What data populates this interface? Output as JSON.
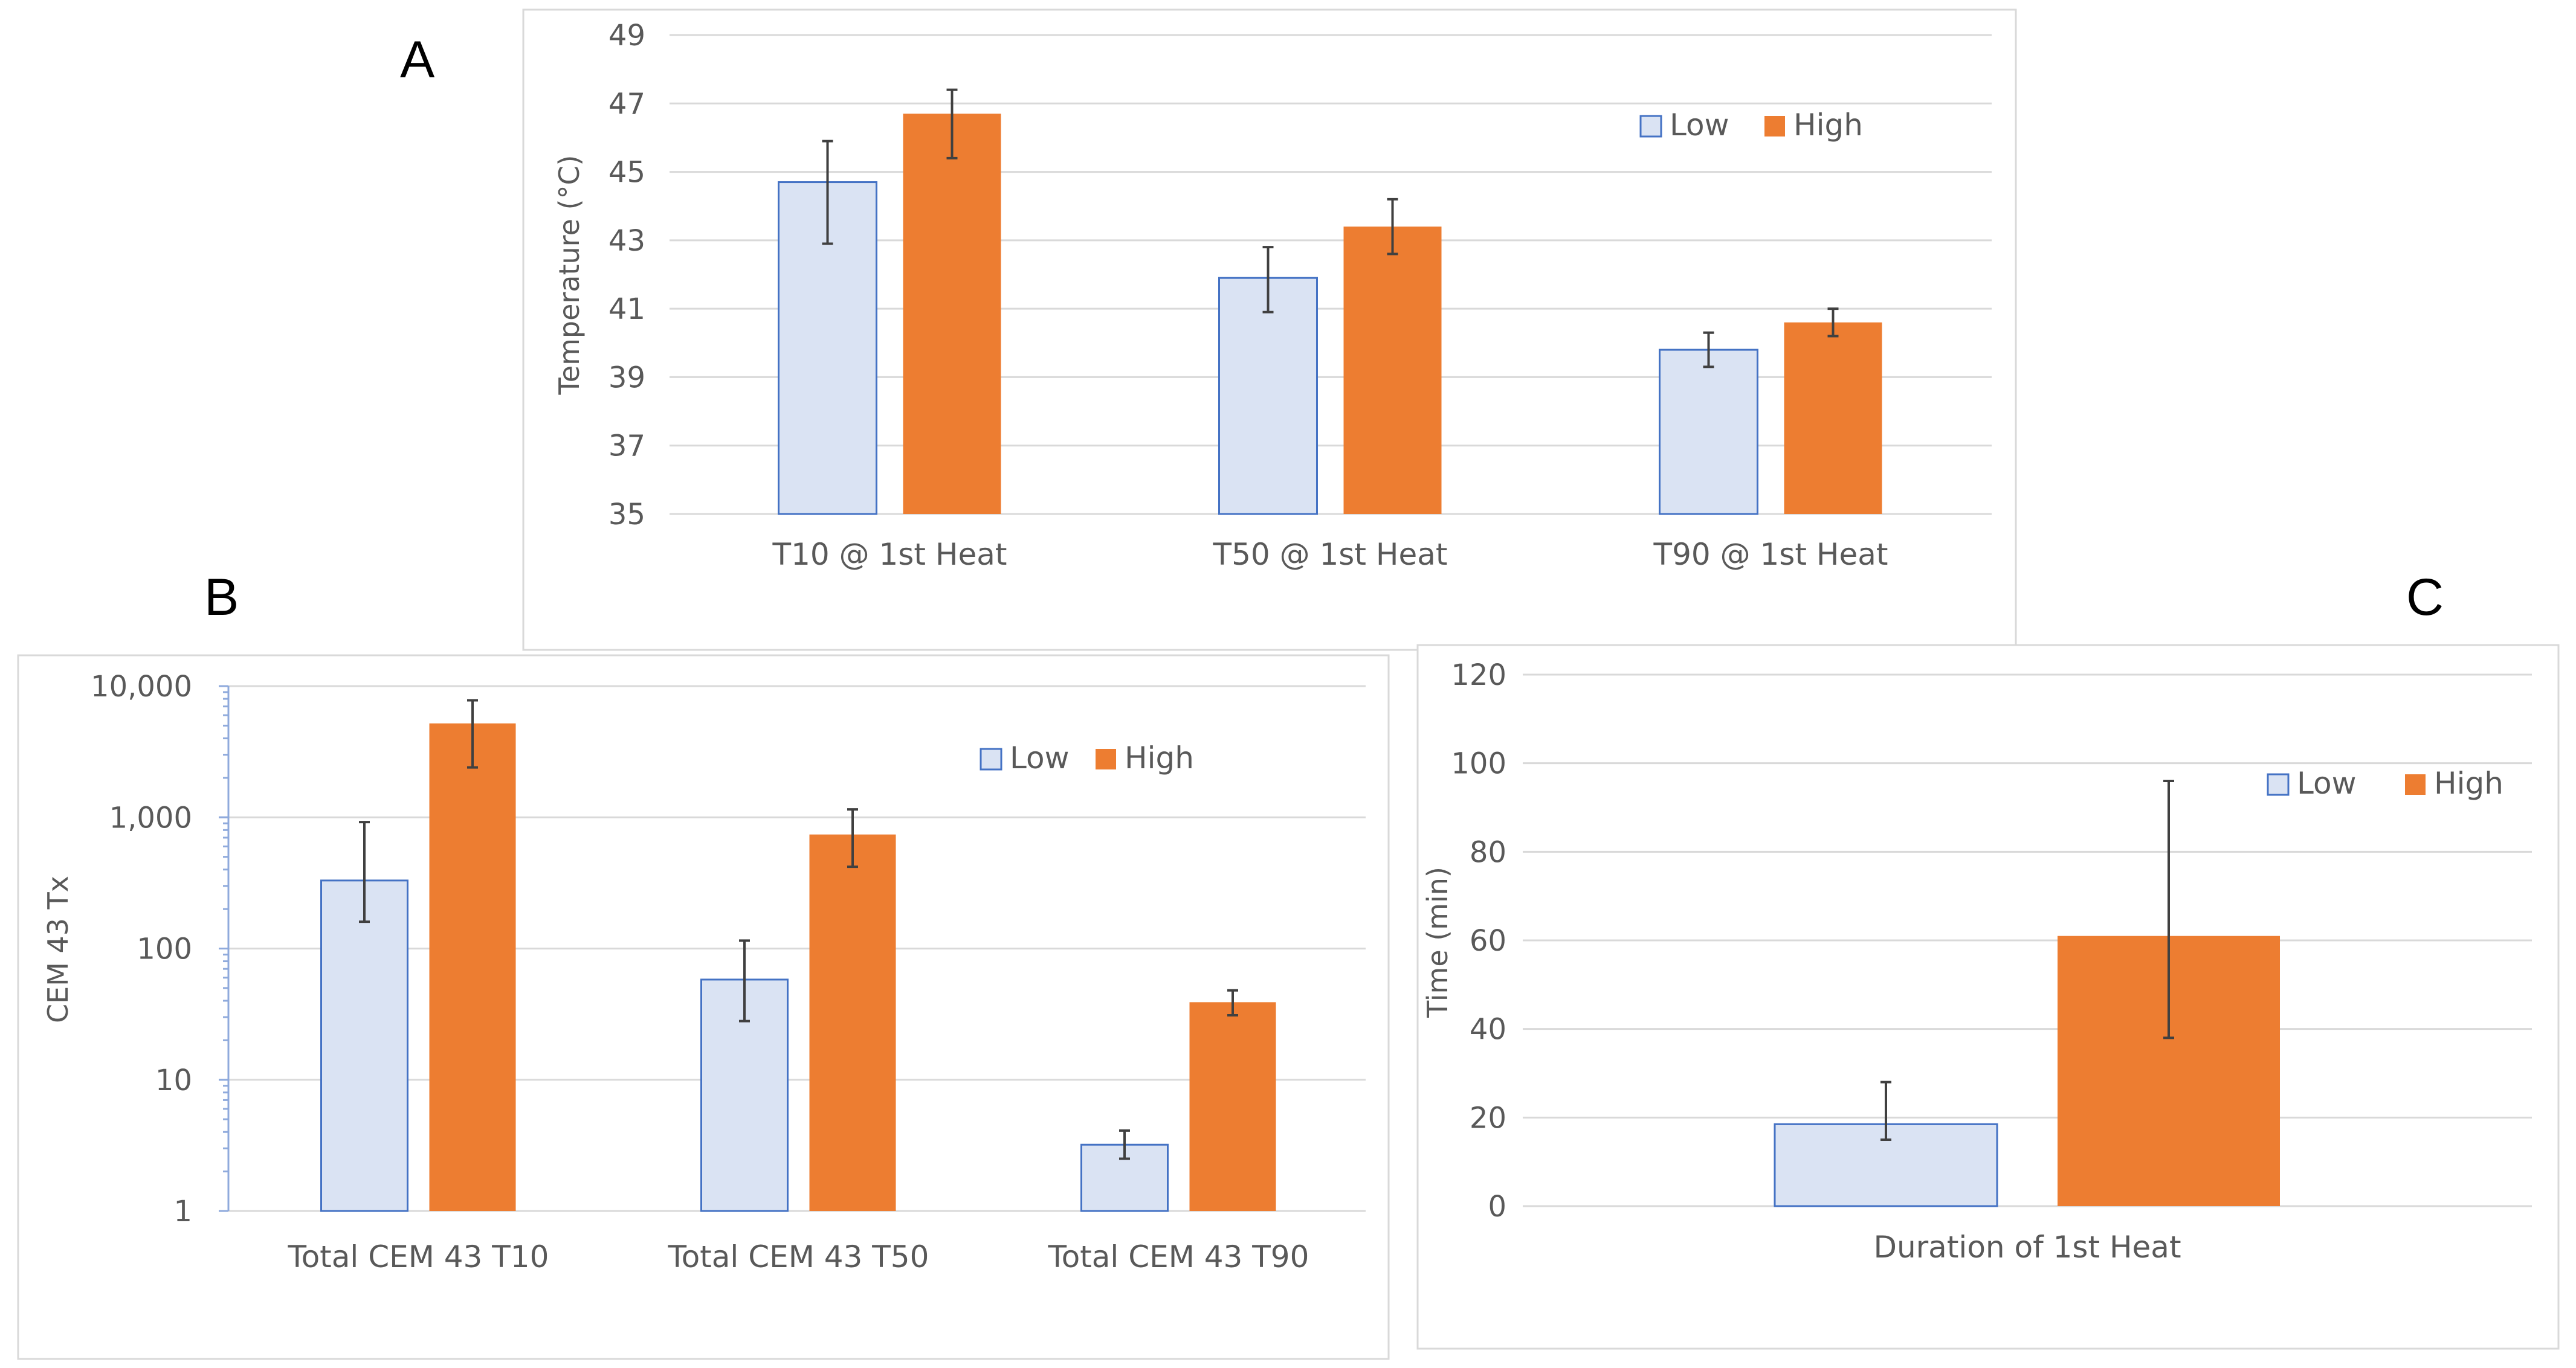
{
  "colors": {
    "low_fill": "#DAE3F3",
    "low_stroke": "#4472C4",
    "high_fill": "#ED7D31",
    "grid": "#D9D9D9",
    "error_bar": "#404040"
  },
  "panels": {
    "a": "A",
    "b": "B",
    "c": "C"
  },
  "chart_data": [
    {
      "id": "A",
      "type": "bar",
      "scale": "linear",
      "categories": [
        "T10 @ 1st Heat",
        "T50 @ 1st Heat",
        "T90 @ 1st Heat"
      ],
      "series": [
        {
          "name": "Low",
          "values": [
            44.7,
            41.9,
            39.8
          ],
          "err_low": [
            42.9,
            40.9,
            39.3
          ],
          "err_high": [
            45.9,
            42.8,
            40.3
          ]
        },
        {
          "name": "High",
          "values": [
            46.7,
            43.4,
            40.6
          ],
          "err_low": [
            45.4,
            42.6,
            40.2
          ],
          "err_high": [
            47.4,
            44.2,
            41.0
          ]
        }
      ],
      "ylabel": "Temperature (°C)",
      "ylim": [
        35,
        49
      ],
      "yticks": [
        "35",
        "37",
        "39",
        "41",
        "43",
        "45",
        "47",
        "49"
      ],
      "grid": true,
      "legend": "top-right"
    },
    {
      "id": "B",
      "type": "bar",
      "scale": "log",
      "categories": [
        "Total CEM 43 T10",
        "Total CEM 43 T50",
        "Total CEM 43 T90"
      ],
      "series": [
        {
          "name": "Low",
          "values": [
            330,
            58,
            3.2
          ],
          "err_low": [
            160,
            28,
            2.5
          ],
          "err_high": [
            920,
            115,
            4.1
          ]
        },
        {
          "name": "High",
          "values": [
            5200,
            740,
            39
          ],
          "err_low": [
            2400,
            420,
            31
          ],
          "err_high": [
            7800,
            1150,
            48
          ]
        }
      ],
      "ylabel": "CEM 43 Tx",
      "ylim": [
        1,
        10000
      ],
      "yticks": [
        "1",
        "10",
        "100",
        "1,000",
        "10,000"
      ],
      "grid": true,
      "legend": "top-right"
    },
    {
      "id": "C",
      "type": "bar",
      "scale": "linear",
      "categories": [
        "Duration of 1st Heat"
      ],
      "series": [
        {
          "name": "Low",
          "values": [
            18.5
          ],
          "err_low": [
            15
          ],
          "err_high": [
            28
          ]
        },
        {
          "name": "High",
          "values": [
            61
          ],
          "err_low": [
            38
          ],
          "err_high": [
            96
          ]
        }
      ],
      "ylabel": "Time (min)",
      "ylim": [
        0,
        120
      ],
      "yticks": [
        "0",
        "20",
        "40",
        "60",
        "80",
        "100",
        "120"
      ],
      "grid": true,
      "legend": "top-right"
    }
  ]
}
